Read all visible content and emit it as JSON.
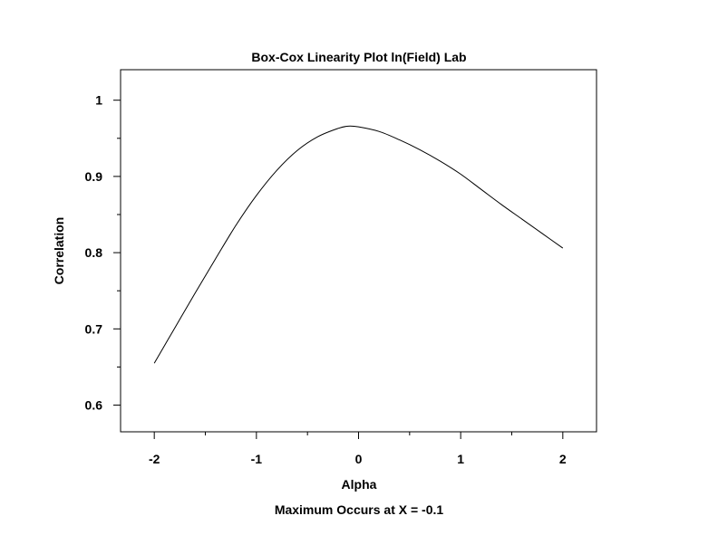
{
  "chart_data": {
    "type": "line",
    "title": "Box-Cox Linearity Plot ln(Field) Lab",
    "xlabel": "Alpha",
    "ylabel": "Correlation",
    "footnote": "Maximum Occurs at X = -0.1",
    "xlim": [
      -2.33,
      2.33
    ],
    "ylim": [
      0.565,
      1.04
    ],
    "x_ticks": [
      -2,
      -1,
      0,
      1,
      2
    ],
    "x_tick_labels": [
      "-2",
      "-1",
      "0",
      "1",
      "2"
    ],
    "x_minor_ticks": [
      -1.5,
      -0.5,
      0.5,
      1.5
    ],
    "y_ticks": [
      0.6,
      0.7,
      0.8,
      0.9,
      1.0
    ],
    "y_tick_labels": [
      "0.6",
      "0.7",
      "0.8",
      "0.9",
      "1"
    ],
    "y_minor_ticks": [
      0.65,
      0.75,
      0.85,
      0.95
    ],
    "grid": false,
    "legend": "none",
    "series": [
      {
        "x": [
          -2.0,
          -1.8,
          -1.6,
          -1.4,
          -1.2,
          -1.0,
          -0.8,
          -0.6,
          -0.4,
          -0.2,
          -0.1,
          0.0,
          0.2,
          0.4,
          0.6,
          0.8,
          1.0,
          1.2,
          1.4,
          1.6,
          1.8,
          2.0
        ],
        "y": [
          0.655,
          0.701,
          0.747,
          0.792,
          0.836,
          0.875,
          0.908,
          0.934,
          0.952,
          0.963,
          0.966,
          0.965,
          0.959,
          0.948,
          0.935,
          0.92,
          0.903,
          0.883,
          0.863,
          0.844,
          0.825,
          0.806
        ]
      }
    ]
  }
}
